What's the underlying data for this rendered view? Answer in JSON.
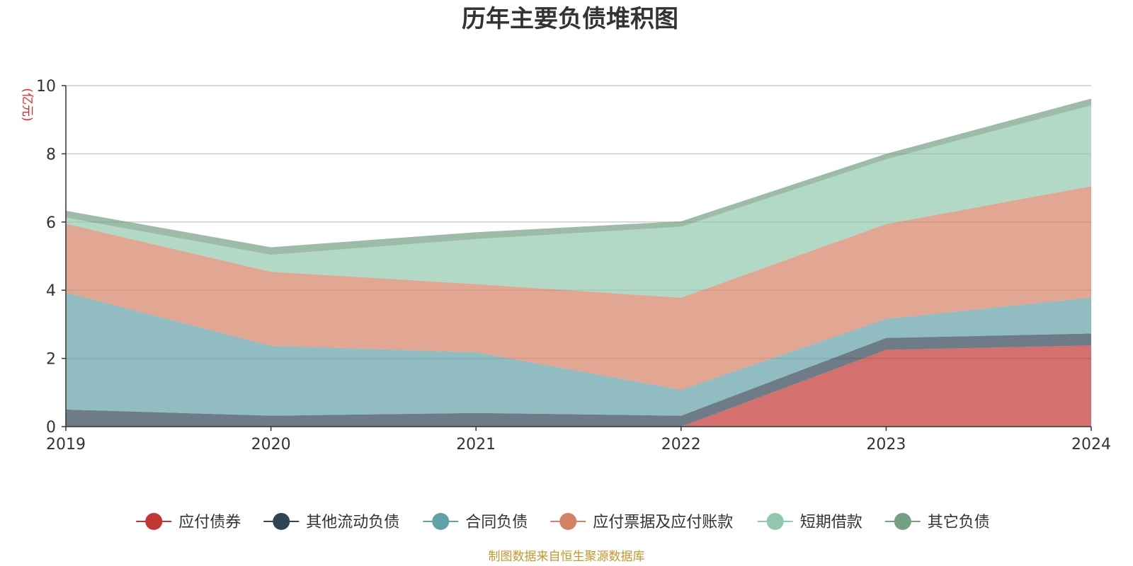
{
  "chart_data": {
    "type": "area",
    "title": "历年主要负债堆积图",
    "unit_label": "(亿元)",
    "x": [
      "2019",
      "2020",
      "2021",
      "2022",
      "2023",
      "2024"
    ],
    "ylim": [
      0,
      10
    ],
    "yticks": [
      "0",
      "2",
      "4",
      "6",
      "8",
      "10"
    ],
    "stacked": true,
    "grid": true,
    "legend_position": "bottom",
    "series": [
      {
        "name": "应付债券",
        "color": "#c23531",
        "values": [
          0,
          0,
          0,
          0,
          2.25,
          2.38
        ]
      },
      {
        "name": "其他流动负债",
        "color": "#2f4554",
        "values": [
          0.5,
          0.32,
          0.4,
          0.32,
          0.35,
          0.35
        ]
      },
      {
        "name": "合同负债",
        "color": "#61a0a8",
        "values": [
          3.43,
          2.05,
          1.78,
          0.76,
          0.56,
          1.06
        ]
      },
      {
        "name": "应付票据及应付账款",
        "color": "#d48265",
        "values": [
          2.02,
          2.17,
          2.0,
          2.7,
          2.78,
          3.26
        ]
      },
      {
        "name": "短期借款",
        "color": "#91c7ae",
        "values": [
          0.18,
          0.5,
          1.32,
          2.08,
          1.9,
          2.37
        ]
      },
      {
        "name": "其它负债",
        "color": "#749f83",
        "values": [
          0.2,
          0.22,
          0.2,
          0.16,
          0.16,
          0.2
        ]
      }
    ],
    "source_note": "制图数据来自恒生聚源数据库"
  }
}
